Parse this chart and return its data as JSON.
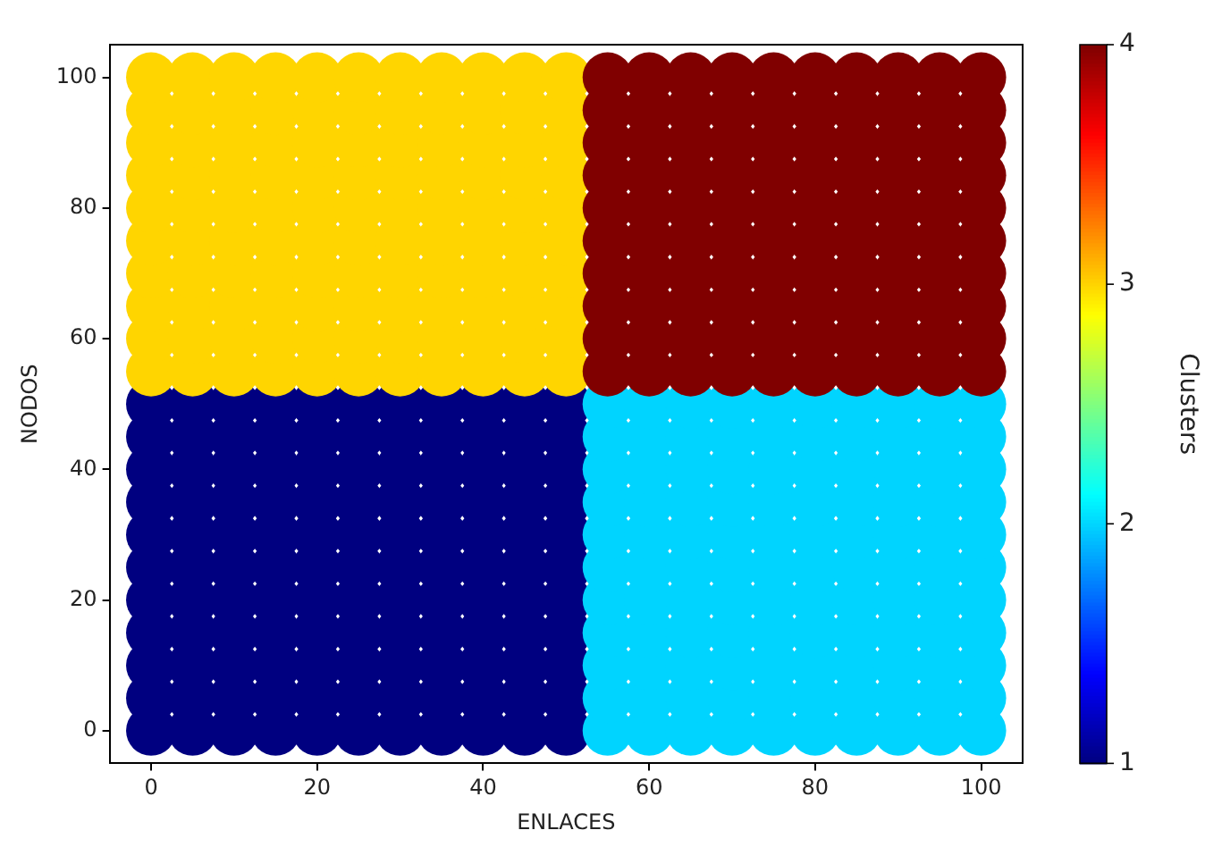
{
  "chart_data": {
    "type": "scatter",
    "xlabel": "ENLACES",
    "ylabel": "NODOS",
    "clabel": "Clusters",
    "clim": [
      1,
      4
    ],
    "cticks": [
      1,
      2,
      3,
      4
    ],
    "xlim": [
      -5,
      105
    ],
    "ylim": [
      -5,
      105
    ],
    "xticks": [
      0,
      20,
      40,
      60,
      80,
      100
    ],
    "yticks": [
      0,
      20,
      40,
      60,
      80,
      100
    ],
    "grid": false,
    "legend": false,
    "marker": "circle",
    "x": [
      0,
      5,
      10,
      15,
      20,
      25,
      30,
      35,
      40,
      45,
      50,
      55,
      60,
      65,
      70,
      75,
      80,
      85,
      90,
      95,
      100,
      0,
      5,
      10,
      15,
      20,
      25,
      30,
      35,
      40,
      45,
      50,
      55,
      60,
      65,
      70,
      75,
      80,
      85,
      90,
      95,
      100,
      0,
      5,
      10,
      15,
      20,
      25,
      30,
      35,
      40,
      45,
      50,
      55,
      60,
      65,
      70,
      75,
      80,
      85,
      90,
      95,
      100,
      0,
      5,
      10,
      15,
      20,
      25,
      30,
      35,
      40,
      45,
      50,
      55,
      60,
      65,
      70,
      75,
      80,
      85,
      90,
      95,
      100,
      0,
      5,
      10,
      15,
      20,
      25,
      30,
      35,
      40,
      45,
      50,
      55,
      60,
      65,
      70,
      75,
      80,
      85,
      90,
      95,
      100,
      0,
      5,
      10,
      15,
      20,
      25,
      30,
      35,
      40,
      45,
      50,
      55,
      60,
      65,
      70,
      75,
      80,
      85,
      90,
      95,
      100,
      0,
      5,
      10,
      15,
      20,
      25,
      30,
      35,
      40,
      45,
      50,
      55,
      60,
      65,
      70,
      75,
      80,
      85,
      90,
      95,
      100,
      0,
      5,
      10,
      15,
      20,
      25,
      30,
      35,
      40,
      45,
      50,
      55,
      60,
      65,
      70,
      75,
      80,
      85,
      90,
      95,
      100,
      0,
      5,
      10,
      15,
      20,
      25,
      30,
      35,
      40,
      45,
      50,
      55,
      60,
      65,
      70,
      75,
      80,
      85,
      90,
      95,
      100,
      0,
      5,
      10,
      15,
      20,
      25,
      30,
      35,
      40,
      45,
      50,
      55,
      60,
      65,
      70,
      75,
      80,
      85,
      90,
      95,
      100,
      0,
      5,
      10,
      15,
      20,
      25,
      30,
      35,
      40,
      45,
      50,
      55,
      60,
      65,
      70,
      75,
      80,
      85,
      90,
      95,
      100,
      0,
      5,
      10,
      15,
      20,
      25,
      30,
      35,
      40,
      45,
      50,
      55,
      60,
      65,
      70,
      75,
      80,
      85,
      90,
      95,
      100,
      0,
      5,
      10,
      15,
      20,
      25,
      30,
      35,
      40,
      45,
      50,
      55,
      60,
      65,
      70,
      75,
      80,
      85,
      90,
      95,
      100,
      0,
      5,
      10,
      15,
      20,
      25,
      30,
      35,
      40,
      45,
      50,
      55,
      60,
      65,
      70,
      75,
      80,
      85,
      90,
      95,
      100,
      0,
      5,
      10,
      15,
      20,
      25,
      30,
      35,
      40,
      45,
      50,
      55,
      60,
      65,
      70,
      75,
      80,
      85,
      90,
      95,
      100,
      0,
      5,
      10,
      15,
      20,
      25,
      30,
      35,
      40,
      45,
      50,
      55,
      60,
      65,
      70,
      75,
      80,
      85,
      90,
      95,
      100,
      0,
      5,
      10,
      15,
      20,
      25,
      30,
      35,
      40,
      45,
      50,
      55,
      60,
      65,
      70,
      75,
      80,
      85,
      90,
      95,
      100,
      0,
      5,
      10,
      15,
      20,
      25,
      30,
      35,
      40,
      45,
      50,
      55,
      60,
      65,
      70,
      75,
      80,
      85,
      90,
      95,
      100,
      0,
      5,
      10,
      15,
      20,
      25,
      30,
      35,
      40,
      45,
      50,
      55,
      60,
      65,
      70,
      75,
      80,
      85,
      90,
      95,
      100,
      0,
      5,
      10,
      15,
      20,
      25,
      30,
      35,
      40,
      45,
      50,
      55,
      60,
      65,
      70,
      75,
      80,
      85,
      90,
      95,
      100,
      0,
      5,
      10,
      15,
      20,
      25,
      30,
      35,
      40,
      45,
      50,
      55,
      60,
      65,
      70,
      75,
      80,
      85,
      90,
      95,
      100
    ],
    "values": [
      0,
      0,
      0,
      0,
      0,
      0,
      0,
      0,
      0,
      0,
      0,
      0,
      0,
      0,
      0,
      0,
      0,
      0,
      0,
      0,
      0,
      5,
      5,
      5,
      5,
      5,
      5,
      5,
      5,
      5,
      5,
      5,
      5,
      5,
      5,
      5,
      5,
      5,
      5,
      5,
      5,
      5,
      10,
      10,
      10,
      10,
      10,
      10,
      10,
      10,
      10,
      10,
      10,
      10,
      10,
      10,
      10,
      10,
      10,
      10,
      10,
      10,
      10,
      15,
      15,
      15,
      15,
      15,
      15,
      15,
      15,
      15,
      15,
      15,
      15,
      15,
      15,
      15,
      15,
      15,
      15,
      15,
      15,
      15,
      20,
      20,
      20,
      20,
      20,
      20,
      20,
      20,
      20,
      20,
      20,
      20,
      20,
      20,
      20,
      20,
      20,
      20,
      20,
      20,
      20,
      25,
      25,
      25,
      25,
      25,
      25,
      25,
      25,
      25,
      25,
      25,
      25,
      25,
      25,
      25,
      25,
      25,
      25,
      25,
      25,
      25,
      30,
      30,
      30,
      30,
      30,
      30,
      30,
      30,
      30,
      30,
      30,
      30,
      30,
      30,
      30,
      30,
      30,
      30,
      30,
      30,
      30,
      35,
      35,
      35,
      35,
      35,
      35,
      35,
      35,
      35,
      35,
      35,
      35,
      35,
      35,
      35,
      35,
      35,
      35,
      35,
      35,
      35,
      40,
      40,
      40,
      40,
      40,
      40,
      40,
      40,
      40,
      40,
      40,
      40,
      40,
      40,
      40,
      40,
      40,
      40,
      40,
      40,
      40,
      45,
      45,
      45,
      45,
      45,
      45,
      45,
      45,
      45,
      45,
      45,
      45,
      45,
      45,
      45,
      45,
      45,
      45,
      45,
      45,
      45,
      50,
      50,
      50,
      50,
      50,
      50,
      50,
      50,
      50,
      50,
      50,
      50,
      50,
      50,
      50,
      50,
      50,
      50,
      50,
      50,
      50,
      55,
      55,
      55,
      55,
      55,
      55,
      55,
      55,
      55,
      55,
      55,
      55,
      55,
      55,
      55,
      55,
      55,
      55,
      55,
      55,
      55,
      60,
      60,
      60,
      60,
      60,
      60,
      60,
      60,
      60,
      60,
      60,
      60,
      60,
      60,
      60,
      60,
      60,
      60,
      60,
      60,
      60,
      65,
      65,
      65,
      65,
      65,
      65,
      65,
      65,
      65,
      65,
      65,
      65,
      65,
      65,
      65,
      65,
      65,
      65,
      65,
      65,
      65,
      70,
      70,
      70,
      70,
      70,
      70,
      70,
      70,
      70,
      70,
      70,
      70,
      70,
      70,
      70,
      70,
      70,
      70,
      70,
      70,
      70,
      75,
      75,
      75,
      75,
      75,
      75,
      75,
      75,
      75,
      75,
      75,
      75,
      75,
      75,
      75,
      75,
      75,
      75,
      75,
      75,
      75,
      80,
      80,
      80,
      80,
      80,
      80,
      80,
      80,
      80,
      80,
      80,
      80,
      80,
      80,
      80,
      80,
      80,
      80,
      80,
      80,
      80,
      85,
      85,
      85,
      85,
      85,
      85,
      85,
      85,
      85,
      85,
      85,
      85,
      85,
      85,
      85,
      85,
      85,
      85,
      85,
      85,
      85,
      90,
      90,
      90,
      90,
      90,
      90,
      90,
      90,
      90,
      90,
      90,
      90,
      90,
      90,
      90,
      90,
      90,
      90,
      90,
      90,
      90,
      95,
      95,
      95,
      95,
      95,
      95,
      95,
      95,
      95,
      95,
      95,
      95,
      95,
      95,
      95,
      95,
      95,
      95,
      95,
      95,
      95,
      100,
      100,
      100,
      100,
      100,
      100,
      100,
      100,
      100,
      100,
      100,
      100,
      100,
      100,
      100,
      100,
      100,
      100,
      100,
      100,
      100
    ],
    "cvalues": [
      1,
      1,
      1,
      1,
      1,
      1,
      1,
      1,
      1,
      1,
      1,
      2,
      2,
      2,
      2,
      2,
      2,
      2,
      2,
      2,
      2,
      1,
      1,
      1,
      1,
      1,
      1,
      1,
      1,
      1,
      1,
      1,
      2,
      2,
      2,
      2,
      2,
      2,
      2,
      2,
      2,
      2,
      1,
      1,
      1,
      1,
      1,
      1,
      1,
      1,
      1,
      1,
      1,
      2,
      2,
      2,
      2,
      2,
      2,
      2,
      2,
      2,
      2,
      1,
      1,
      1,
      1,
      1,
      1,
      1,
      1,
      1,
      1,
      1,
      2,
      2,
      2,
      2,
      2,
      2,
      2,
      2,
      2,
      2,
      1,
      1,
      1,
      1,
      1,
      1,
      1,
      1,
      1,
      1,
      1,
      2,
      2,
      2,
      2,
      2,
      2,
      2,
      2,
      2,
      2,
      1,
      1,
      1,
      1,
      1,
      1,
      1,
      1,
      1,
      1,
      1,
      2,
      2,
      2,
      2,
      2,
      2,
      2,
      2,
      2,
      2,
      1,
      1,
      1,
      1,
      1,
      1,
      1,
      1,
      1,
      1,
      1,
      2,
      2,
      2,
      2,
      2,
      2,
      2,
      2,
      2,
      2,
      1,
      1,
      1,
      1,
      1,
      1,
      1,
      1,
      1,
      1,
      1,
      2,
      2,
      2,
      2,
      2,
      2,
      2,
      2,
      2,
      2,
      1,
      1,
      1,
      1,
      1,
      1,
      1,
      1,
      1,
      1,
      1,
      2,
      2,
      2,
      2,
      2,
      2,
      2,
      2,
      2,
      2,
      1,
      1,
      1,
      1,
      1,
      1,
      1,
      1,
      1,
      1,
      1,
      2,
      2,
      2,
      2,
      2,
      2,
      2,
      2,
      2,
      2,
      1,
      1,
      1,
      1,
      1,
      1,
      1,
      1,
      1,
      1,
      1,
      2,
      2,
      2,
      2,
      2,
      2,
      2,
      2,
      2,
      2,
      3,
      3,
      3,
      3,
      3,
      3,
      3,
      3,
      3,
      3,
      3,
      4,
      4,
      4,
      4,
      4,
      4,
      4,
      4,
      4,
      4,
      3,
      3,
      3,
      3,
      3,
      3,
      3,
      3,
      3,
      3,
      3,
      4,
      4,
      4,
      4,
      4,
      4,
      4,
      4,
      4,
      4,
      3,
      3,
      3,
      3,
      3,
      3,
      3,
      3,
      3,
      3,
      3,
      4,
      4,
      4,
      4,
      4,
      4,
      4,
      4,
      4,
      4,
      3,
      3,
      3,
      3,
      3,
      3,
      3,
      3,
      3,
      3,
      3,
      4,
      4,
      4,
      4,
      4,
      4,
      4,
      4,
      4,
      4,
      3,
      3,
      3,
      3,
      3,
      3,
      3,
      3,
      3,
      3,
      3,
      4,
      4,
      4,
      4,
      4,
      4,
      4,
      4,
      4,
      4,
      3,
      3,
      3,
      3,
      3,
      3,
      3,
      3,
      3,
      3,
      3,
      4,
      4,
      4,
      4,
      4,
      4,
      4,
      4,
      4,
      4,
      3,
      3,
      3,
      3,
      3,
      3,
      3,
      3,
      3,
      3,
      3,
      4,
      4,
      4,
      4,
      4,
      4,
      4,
      4,
      4,
      4,
      3,
      3,
      3,
      3,
      3,
      3,
      3,
      3,
      3,
      3,
      3,
      4,
      4,
      4,
      4,
      4,
      4,
      4,
      4,
      4,
      4,
      3,
      3,
      3,
      3,
      3,
      3,
      3,
      3,
      3,
      3,
      3,
      4,
      4,
      4,
      4,
      4,
      4,
      4,
      4,
      4,
      4,
      3,
      3,
      3,
      3,
      3,
      3,
      3,
      3,
      3,
      3,
      3,
      4,
      4,
      4,
      4,
      4,
      4,
      4,
      4,
      4,
      4
    ]
  }
}
